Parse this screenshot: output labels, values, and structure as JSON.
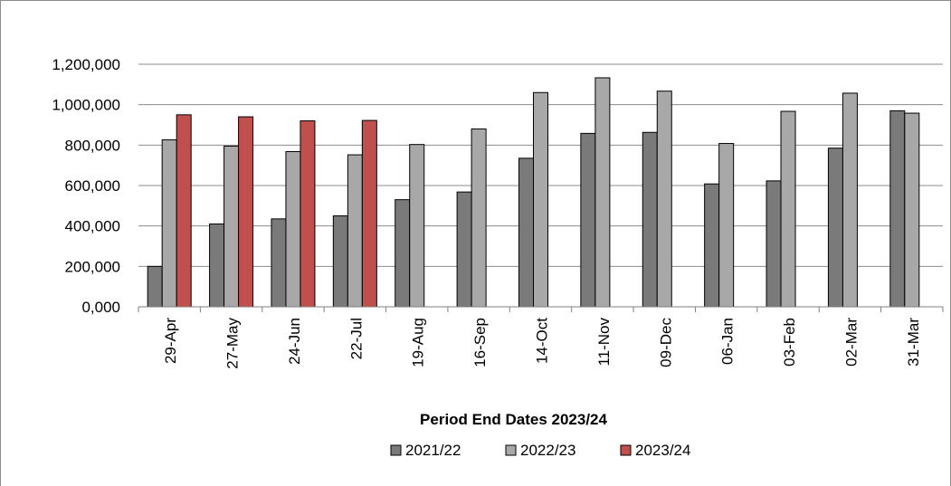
{
  "chart_data": {
    "type": "bar",
    "title": "",
    "xlabel": "Period End Dates 2023/24",
    "ylabel": "",
    "ylim": [
      0,
      1200000
    ],
    "yticks": [
      "0,000",
      "200,000",
      "400,000",
      "600,000",
      "800,000",
      "1,000,000",
      "1,200,000"
    ],
    "ytick_values": [
      0,
      200000,
      400000,
      600000,
      800000,
      1000000,
      1200000
    ],
    "grid": true,
    "legend_position": "bottom",
    "categories": [
      "29-Apr",
      "27-May",
      "24-Jun",
      "22-Jul",
      "19-Aug",
      "16-Sep",
      "14-Oct",
      "11-Nov",
      "09-Dec",
      "06-Jan",
      "03-Feb",
      "02-Mar",
      "31-Mar"
    ],
    "series": [
      {
        "name": "2021/22",
        "color": "#7a7a7a",
        "values": [
          200000,
          410000,
          435000,
          450000,
          530000,
          568000,
          735000,
          858000,
          863000,
          608000,
          623000,
          785000,
          970000
        ]
      },
      {
        "name": "2022/23",
        "color": "#a8a8a8",
        "values": [
          826000,
          795000,
          768000,
          752000,
          803000,
          880000,
          1060000,
          1133000,
          1067000,
          808000,
          967000,
          1057000,
          958000
        ]
      },
      {
        "name": "2023/24",
        "color": "#c0504d",
        "values": [
          950000,
          940000,
          920000,
          922000,
          null,
          null,
          null,
          null,
          null,
          null,
          null,
          null,
          null
        ]
      }
    ]
  }
}
